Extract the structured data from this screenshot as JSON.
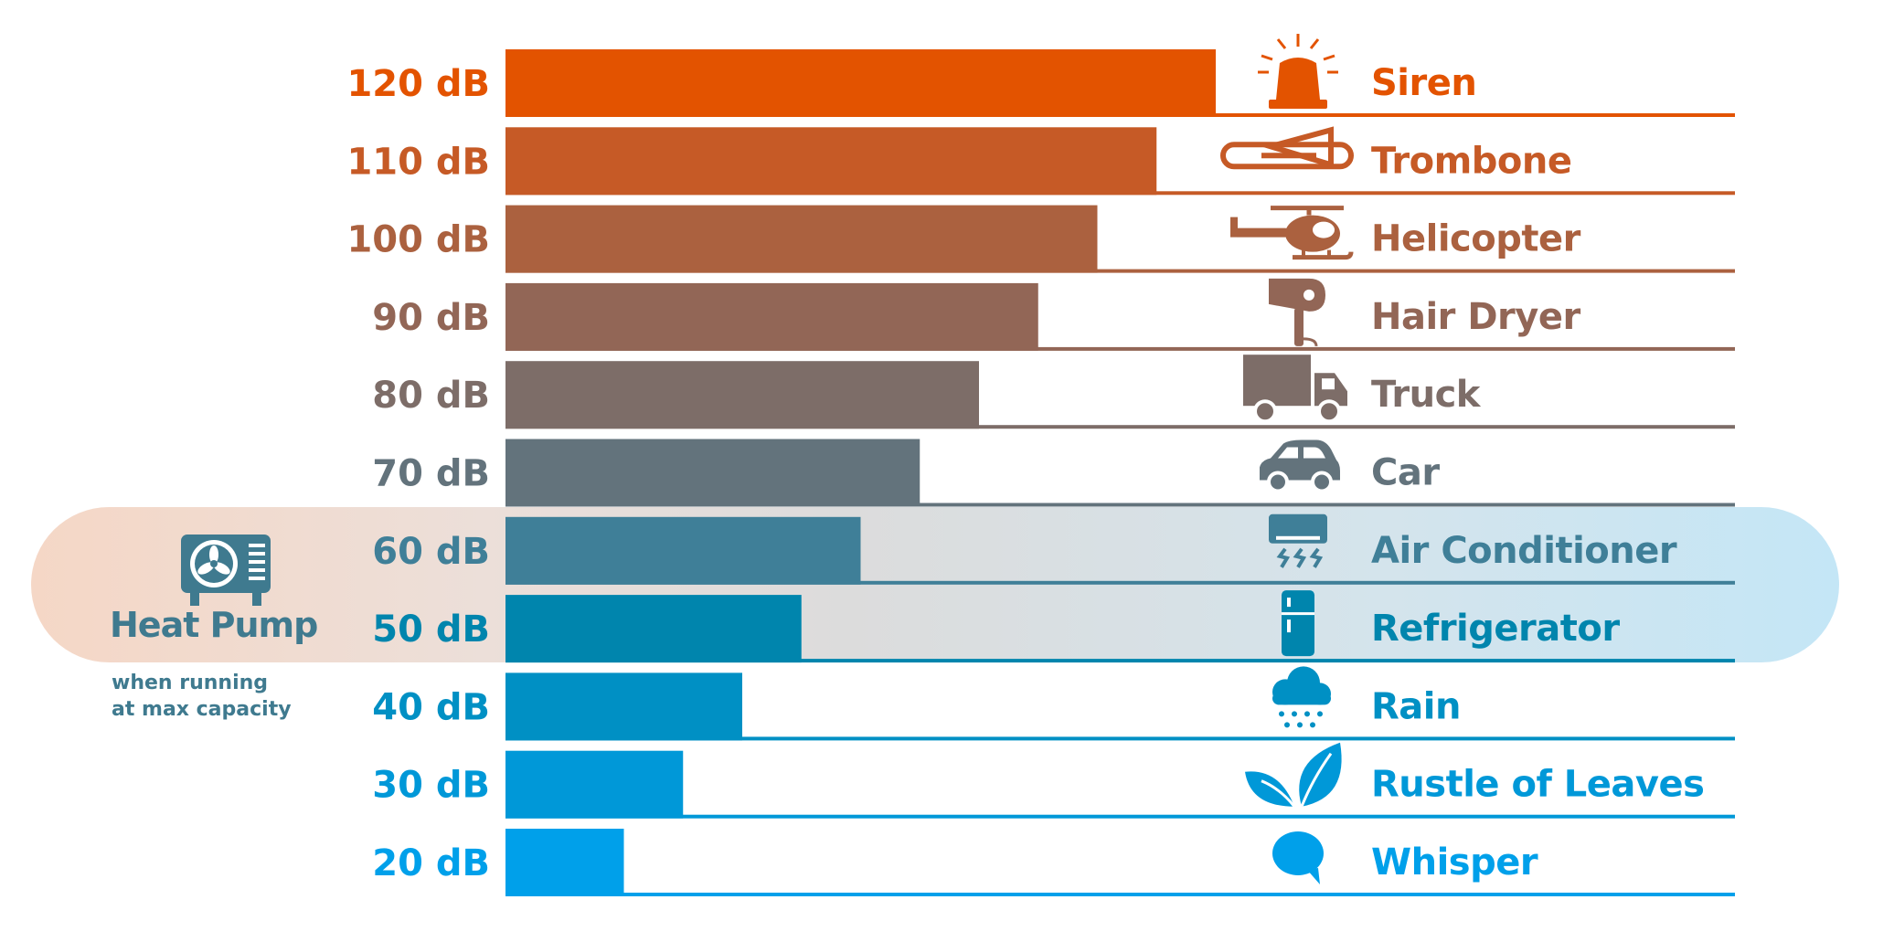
{
  "chart_data": {
    "type": "bar",
    "orientation": "horizontal",
    "unit": "dB",
    "categories": [
      "Siren",
      "Trombone",
      "Helicopter",
      "Hair Dryer",
      "Truck",
      "Car",
      "Air Conditioner",
      "Refrigerator",
      "Rain",
      "Rustle of Leaves",
      "Whisper"
    ],
    "values": [
      120,
      110,
      100,
      90,
      80,
      70,
      60,
      50,
      40,
      30,
      20
    ],
    "value_labels": [
      "120 dB",
      "110 dB",
      "100 dB",
      "90 dB",
      "80 dB",
      "70 dB",
      "60 dB",
      "50 dB",
      "40 dB",
      "30 dB",
      "20 dB"
    ],
    "icons": [
      "siren-icon",
      "trombone-icon",
      "helicopter-icon",
      "hair-dryer-icon",
      "truck-icon",
      "car-icon",
      "air-conditioner-icon",
      "refrigerator-icon",
      "rain-icon",
      "leaves-icon",
      "speech-bubble-icon"
    ],
    "colors": [
      "#e35300",
      "#c65a26",
      "#ab613f",
      "#926656",
      "#7d6d68",
      "#63737c",
      "#3f7f98",
      "#0085ad",
      "#0090c4",
      "#0098d8",
      "#00a0ea"
    ],
    "highlight": {
      "title": "Heat Pump",
      "subtitle_lines": [
        "when running",
        "at max capacity"
      ],
      "rows": [
        "Air Conditioner",
        "Refrigerator"
      ],
      "icon": "heat-pump-icon",
      "color": "#3f7a8f"
    },
    "grid": false,
    "legend": "none"
  }
}
